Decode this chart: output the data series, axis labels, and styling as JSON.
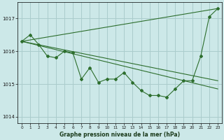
{
  "background_color": "#cce8e8",
  "grid_color": "#aacccc",
  "line_color": "#2d6e2d",
  "title": "Graphe pression niveau de la mer (hPa)",
  "ylim": [
    1013.8,
    1017.5
  ],
  "xlim": [
    -0.5,
    23.5
  ],
  "yticks": [
    1014,
    1015,
    1016,
    1017
  ],
  "xticks": [
    0,
    1,
    2,
    3,
    4,
    5,
    6,
    7,
    8,
    9,
    10,
    11,
    12,
    13,
    14,
    15,
    16,
    17,
    18,
    19,
    20,
    21,
    22,
    23
  ],
  "series": [
    {
      "x": [
        0,
        1,
        2,
        3,
        4,
        5,
        6,
        7,
        8,
        9,
        10,
        11,
        12,
        13,
        14,
        15,
        16,
        17,
        18,
        19,
        20,
        21,
        22,
        23
      ],
      "y": [
        1016.3,
        1016.5,
        1016.2,
        1015.85,
        1015.8,
        1016.0,
        1015.95,
        1015.15,
        1015.5,
        1015.05,
        1015.15,
        1015.15,
        1015.35,
        1015.05,
        1014.8,
        1014.65,
        1014.65,
        1014.6,
        1014.85,
        1015.1,
        1015.1,
        1015.85,
        1017.05,
        1017.3
      ],
      "linestyle": "-",
      "marker": true
    },
    {
      "x": [
        0,
        23
      ],
      "y": [
        1016.3,
        1017.3
      ],
      "linestyle": "-",
      "marker": false
    },
    {
      "x": [
        0,
        23
      ],
      "y": [
        1016.3,
        1015.1
      ],
      "linestyle": "-",
      "marker": false
    },
    {
      "x": [
        0,
        23
      ],
      "y": [
        1016.3,
        1014.85
      ],
      "linestyle": "-",
      "marker": false
    }
  ]
}
